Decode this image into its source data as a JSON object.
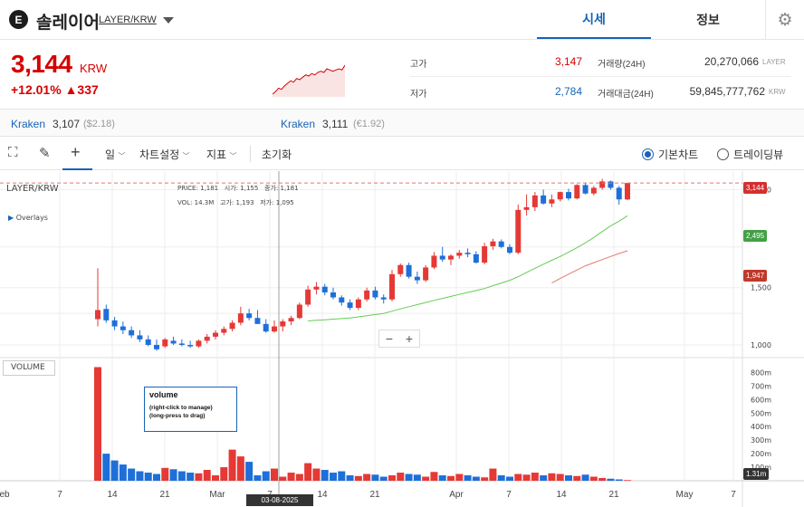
{
  "header": {
    "logo_glyph": "E",
    "coin_name": "솔레이어",
    "pair": "LAYER/KRW",
    "tabs": [
      {
        "label": "시세"
      },
      {
        "label": "정보"
      }
    ],
    "settings_icon": "gear-icon"
  },
  "summary": {
    "price": "3,144",
    "unit": "KRW",
    "change_pct": "+12.01%",
    "change_amt": "▲337",
    "high_label": "고가",
    "high_value": "3,147",
    "low_label": "저가",
    "low_value": "2,784",
    "volume_label": "거래량(24H)",
    "volume_value": "20,270,066",
    "volume_unit": "LAYER",
    "amount_label": "거래대금(24H)",
    "amount_value": "59,845,777,762",
    "amount_unit": "KRW",
    "sparkline_values": [
      1.0,
      1.2,
      1.5,
      1.4,
      1.7,
      1.9,
      2.1,
      2.0,
      2.3,
      2.2,
      2.4,
      2.6,
      2.5,
      2.7,
      2.6,
      2.8,
      2.9,
      2.8,
      3.1,
      3.0,
      2.9,
      3.0,
      3.1,
      3.0,
      3.4
    ]
  },
  "exchanges": [
    {
      "name": "Kraken",
      "price": "3,107",
      "sub": "($2.18)"
    },
    {
      "name": "Kraken",
      "price": "3,111",
      "sub": "(€1.92)"
    }
  ],
  "toolbar": {
    "interval": "일",
    "chart_settings": "차트설정",
    "indicators": "지표",
    "reset": "초기화",
    "basic_chart": "기본차트",
    "tradingview": "트레이딩뷰"
  },
  "chart_data": {
    "type": "candlestick",
    "symbol": "LAYER/KRW",
    "overlays_label": "Overlays",
    "info_line1": {
      "price_lbl": "PRICE:",
      "price": "1,181",
      "open_lbl": "시가:",
      "open": "1,155",
      "close_lbl": "종가:",
      "close": "1,181"
    },
    "info_line2": {
      "vol_lbl": "VOL:",
      "vol": "14.3M",
      "high_lbl": "고가:",
      "high": "1,193",
      "low_lbl": "저가:",
      "low": "1,095"
    },
    "price_axis": {
      "ticks": [
        "3,000",
        "1,500",
        "1,000"
      ],
      "last": "3,144",
      "ma1": "2,495",
      "ma2": "1,947"
    },
    "volume_label": "VOLUME",
    "volume_axis": {
      "ticks": [
        "800m",
        "700m",
        "600m",
        "500m",
        "400m",
        "300m",
        "200m",
        "100m"
      ],
      "last": "1.31m"
    },
    "x_ticks": [
      "Feb",
      "7",
      "14",
      "21",
      "Mar",
      "7",
      "14",
      "21",
      "Apr",
      "7",
      "14",
      "21",
      "May",
      "7"
    ],
    "crosshair_date": "03-08-2025",
    "tooltip": {
      "title": "volume",
      "line1": "(right-click to manage)",
      "line2": "(long-press to drag)"
    },
    "zoom_minus": "−",
    "zoom_plus": "+",
    "candles": [
      {
        "o": 1200,
        "h": 1720,
        "l": 1140,
        "c": 1280
      },
      {
        "o": 1290,
        "h": 1330,
        "l": 1170,
        "c": 1190
      },
      {
        "o": 1190,
        "h": 1220,
        "l": 1110,
        "c": 1140
      },
      {
        "o": 1140,
        "h": 1180,
        "l": 1080,
        "c": 1110
      },
      {
        "o": 1110,
        "h": 1140,
        "l": 1050,
        "c": 1070
      },
      {
        "o": 1070,
        "h": 1110,
        "l": 1020,
        "c": 1040
      },
      {
        "o": 1040,
        "h": 1070,
        "l": 990,
        "c": 1000
      },
      {
        "o": 1000,
        "h": 1040,
        "l": 960,
        "c": 970
      },
      {
        "o": 990,
        "h": 1050,
        "l": 980,
        "c": 1040
      },
      {
        "o": 1030,
        "h": 1060,
        "l": 1000,
        "c": 1010
      },
      {
        "o": 1010,
        "h": 1040,
        "l": 990,
        "c": 1000
      },
      {
        "o": 1000,
        "h": 1030,
        "l": 980,
        "c": 990
      },
      {
        "o": 990,
        "h": 1040,
        "l": 980,
        "c": 1030
      },
      {
        "o": 1030,
        "h": 1080,
        "l": 1010,
        "c": 1060
      },
      {
        "o": 1060,
        "h": 1110,
        "l": 1040,
        "c": 1090
      },
      {
        "o": 1090,
        "h": 1140,
        "l": 1070,
        "c": 1120
      },
      {
        "o": 1120,
        "h": 1190,
        "l": 1100,
        "c": 1170
      },
      {
        "o": 1170,
        "h": 1310,
        "l": 1150,
        "c": 1250
      },
      {
        "o": 1250,
        "h": 1290,
        "l": 1190,
        "c": 1210
      },
      {
        "o": 1210,
        "h": 1280,
        "l": 1160,
        "c": 1160
      },
      {
        "o": 1160,
        "h": 1200,
        "l": 1090,
        "c": 1100
      },
      {
        "o": 1100,
        "h": 1190,
        "l": 1090,
        "c": 1140
      },
      {
        "o": 1140,
        "h": 1200,
        "l": 1100,
        "c": 1181
      },
      {
        "o": 1181,
        "h": 1230,
        "l": 1150,
        "c": 1210
      },
      {
        "o": 1210,
        "h": 1350,
        "l": 1200,
        "c": 1330
      },
      {
        "o": 1330,
        "h": 1520,
        "l": 1310,
        "c": 1480
      },
      {
        "o": 1480,
        "h": 1560,
        "l": 1430,
        "c": 1510
      },
      {
        "o": 1510,
        "h": 1540,
        "l": 1420,
        "c": 1450
      },
      {
        "o": 1450,
        "h": 1500,
        "l": 1380,
        "c": 1400
      },
      {
        "o": 1400,
        "h": 1420,
        "l": 1320,
        "c": 1350
      },
      {
        "o": 1350,
        "h": 1380,
        "l": 1280,
        "c": 1300
      },
      {
        "o": 1300,
        "h": 1400,
        "l": 1280,
        "c": 1380
      },
      {
        "o": 1380,
        "h": 1500,
        "l": 1360,
        "c": 1470
      },
      {
        "o": 1470,
        "h": 1510,
        "l": 1380,
        "c": 1400
      },
      {
        "o": 1400,
        "h": 1430,
        "l": 1340,
        "c": 1380
      },
      {
        "o": 1380,
        "h": 1700,
        "l": 1360,
        "c": 1650
      },
      {
        "o": 1650,
        "h": 1780,
        "l": 1620,
        "c": 1760
      },
      {
        "o": 1760,
        "h": 1790,
        "l": 1600,
        "c": 1620
      },
      {
        "o": 1620,
        "h": 1680,
        "l": 1540,
        "c": 1580
      },
      {
        "o": 1580,
        "h": 1760,
        "l": 1560,
        "c": 1730
      },
      {
        "o": 1730,
        "h": 1930,
        "l": 1710,
        "c": 1880
      },
      {
        "o": 1880,
        "h": 2000,
        "l": 1800,
        "c": 1830
      },
      {
        "o": 1830,
        "h": 1900,
        "l": 1760,
        "c": 1880
      },
      {
        "o": 1880,
        "h": 1960,
        "l": 1840,
        "c": 1920
      },
      {
        "o": 1920,
        "h": 1980,
        "l": 1860,
        "c": 1900
      },
      {
        "o": 1900,
        "h": 1940,
        "l": 1780,
        "c": 1790
      },
      {
        "o": 1790,
        "h": 2060,
        "l": 1770,
        "c": 2010
      },
      {
        "o": 2010,
        "h": 2120,
        "l": 1960,
        "c": 2080
      },
      {
        "o": 2080,
        "h": 2110,
        "l": 1980,
        "c": 2000
      },
      {
        "o": 2000,
        "h": 2040,
        "l": 1900,
        "c": 1920
      },
      {
        "o": 1920,
        "h": 2700,
        "l": 1900,
        "c": 2600
      },
      {
        "o": 2600,
        "h": 2900,
        "l": 2500,
        "c": 2650
      },
      {
        "o": 2650,
        "h": 2950,
        "l": 2580,
        "c": 2880
      },
      {
        "o": 2880,
        "h": 3000,
        "l": 2700,
        "c": 2720
      },
      {
        "o": 2720,
        "h": 2900,
        "l": 2650,
        "c": 2800
      },
      {
        "o": 2800,
        "h": 2960,
        "l": 2760,
        "c": 2950
      },
      {
        "o": 2950,
        "h": 3020,
        "l": 2780,
        "c": 2820
      },
      {
        "o": 2820,
        "h": 3120,
        "l": 2800,
        "c": 3100
      },
      {
        "o": 3100,
        "h": 3150,
        "l": 2900,
        "c": 2920
      },
      {
        "o": 2920,
        "h": 3080,
        "l": 2880,
        "c": 3040
      },
      {
        "o": 3040,
        "h": 3240,
        "l": 3000,
        "c": 3180
      },
      {
        "o": 3180,
        "h": 3200,
        "l": 3000,
        "c": 3040
      },
      {
        "o": 3040,
        "h": 3080,
        "l": 2700,
        "c": 2800
      },
      {
        "o": 2800,
        "h": 3147,
        "l": 2784,
        "c": 3144
      }
    ],
    "volumes": [
      840,
      200,
      150,
      120,
      90,
      70,
      60,
      50,
      95,
      85,
      70,
      60,
      55,
      80,
      40,
      100,
      230,
      180,
      140,
      40,
      70,
      90,
      30,
      60,
      50,
      130,
      90,
      80,
      60,
      70,
      40,
      35,
      50,
      45,
      30,
      40,
      60,
      50,
      45,
      30,
      65,
      40,
      35,
      50,
      40,
      30,
      25,
      90,
      40,
      30,
      50,
      45,
      60,
      40,
      55,
      50,
      40,
      35,
      45,
      30,
      20,
      15,
      10,
      5
    ],
    "ma1": [
      null,
      null,
      null,
      null,
      null,
      null,
      null,
      null,
      null,
      null,
      null,
      null,
      null,
      null,
      null,
      null,
      null,
      null,
      null,
      null,
      null,
      null,
      null,
      null,
      null,
      1185,
      1190,
      1195,
      1200,
      1205,
      1210,
      1220,
      1230,
      1240,
      1250,
      1270,
      1290,
      1310,
      1330,
      1350,
      1370,
      1390,
      1410,
      1430,
      1450,
      1470,
      1490,
      1520,
      1550,
      1580,
      1620,
      1670,
      1720,
      1770,
      1820,
      1870,
      1930,
      1990,
      2060,
      2140,
      2230,
      2320,
      2400,
      2495
    ],
    "ma2": [
      null,
      null,
      null,
      null,
      null,
      null,
      null,
      null,
      null,
      null,
      null,
      null,
      null,
      null,
      null,
      null,
      null,
      null,
      null,
      null,
      null,
      null,
      null,
      null,
      null,
      null,
      null,
      null,
      null,
      null,
      null,
      null,
      null,
      null,
      null,
      null,
      null,
      null,
      null,
      null,
      null,
      null,
      null,
      null,
      null,
      null,
      null,
      null,
      null,
      null,
      null,
      null,
      null,
      null,
      1550,
      1600,
      1650,
      1700,
      1750,
      1790,
      1830,
      1870,
      1910,
      1947
    ]
  }
}
